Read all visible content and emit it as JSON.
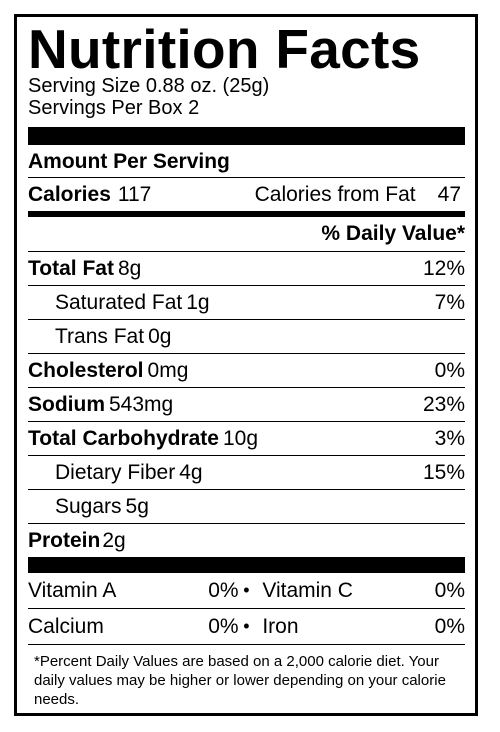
{
  "title": "Nutrition Facts",
  "serving_size": "Serving Size 0.88 oz. (25g)",
  "servings_per": "Servings Per Box 2",
  "amount_per_serving": "Amount Per Serving",
  "calories": {
    "label": "Calories",
    "value": "117",
    "from_fat_label": "Calories from Fat",
    "from_fat_value": "47"
  },
  "daily_value_header": "% Daily Value*",
  "nutrients": [
    {
      "name": "Total Fat",
      "amount": "8g",
      "dv": "12%"
    },
    {
      "name": "Saturated Fat",
      "amount": "1g",
      "dv": "7%"
    },
    {
      "name": "Trans Fat",
      "amount": "0g",
      "dv": ""
    },
    {
      "name": "Cholesterol",
      "amount": "0mg",
      "dv": "0%"
    },
    {
      "name": "Sodium",
      "amount": "543mg",
      "dv": "23%"
    },
    {
      "name": "Total Carbohydrate",
      "amount": "10g",
      "dv": "3%"
    },
    {
      "name": "Dietary Fiber",
      "amount": "4g",
      "dv": "15%"
    },
    {
      "name": "Sugars",
      "amount": "5g",
      "dv": ""
    },
    {
      "name": "Protein",
      "amount": "2g",
      "dv": ""
    }
  ],
  "vitamins": [
    {
      "name": "Vitamin A",
      "dv": "0%"
    },
    {
      "name": "Vitamin C",
      "dv": "0%"
    },
    {
      "name": "Calcium",
      "dv": "0%"
    },
    {
      "name": "Iron",
      "dv": "0%"
    }
  ],
  "bullet": "•",
  "footnote": "*Percent Daily Values are based on a 2,000 calorie diet. Your daily values may be higher or lower depending on your calorie needs."
}
